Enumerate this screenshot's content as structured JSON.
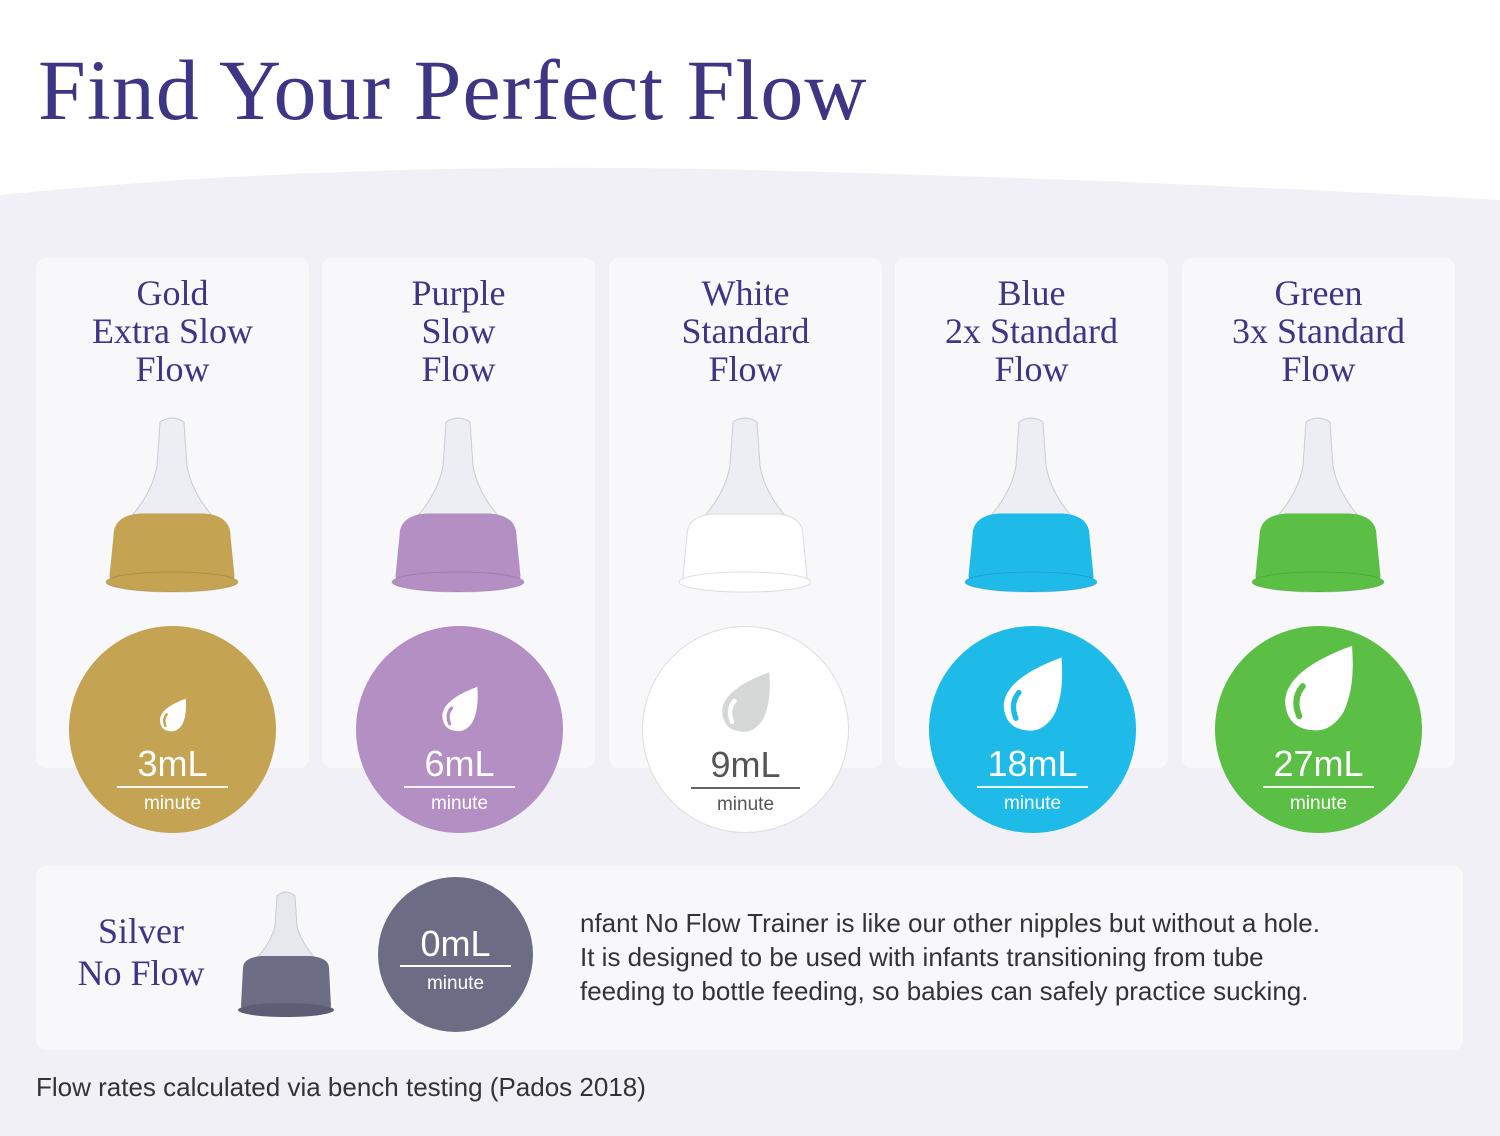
{
  "title": "Find Your Perfect Flow",
  "nipples": [
    {
      "label": "Gold\nExtra Slow\nFlow",
      "value": "3mL",
      "unit": "minute",
      "color": "#c4a352",
      "text_color": "#ffffff",
      "drop_color": "#ffffff"
    },
    {
      "label": "Purple\nSlow\nFlow",
      "value": "6mL",
      "unit": "minute",
      "color": "#b48fc3",
      "text_color": "#ffffff",
      "drop_color": "#ffffff"
    },
    {
      "label": "White\nStandard\nFlow",
      "value": "9mL",
      "unit": "minute",
      "color": "#ffffff",
      "text_color": "#555555",
      "drop_color": "#d5d8d6"
    },
    {
      "label": "Blue\n2x Standard\nFlow",
      "value": "18mL",
      "unit": "minute",
      "color": "#1fbbe8",
      "text_color": "#ffffff",
      "drop_color": "#ffffff"
    },
    {
      "label": "Green\n3x Standard\nFlow",
      "value": "27mL",
      "unit": "minute",
      "color": "#5cbf45",
      "text_color": "#ffffff",
      "drop_color": "#ffffff"
    }
  ],
  "silver": {
    "label": "Silver\nNo Flow",
    "value": "0mL",
    "unit": "minute",
    "color": "#6c6d85",
    "description": "nfant No Flow Trainer is like our other nipples but without a hole.\nIt is designed to be used with infants transitioning from tube\nfeeding to bottle feeding, so babies can safely practice sucking."
  },
  "footnote": "Flow rates calculated via bench testing (Pados 2018)",
  "colors": {
    "title": "#3e3585",
    "background": "#f1f0f6",
    "card": "#f8f8fb"
  }
}
